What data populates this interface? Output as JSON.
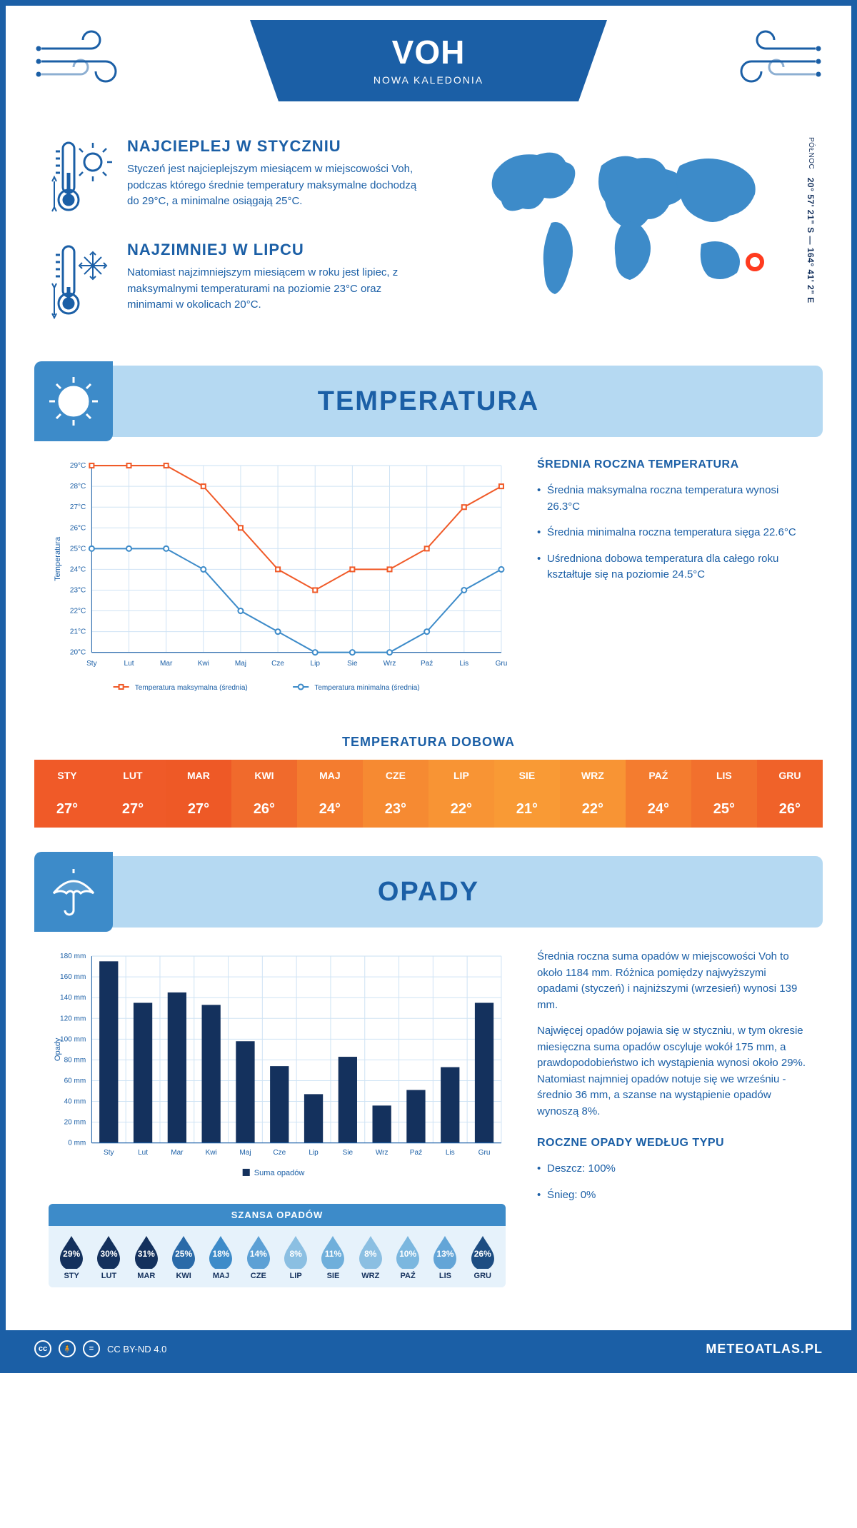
{
  "header": {
    "title": "VOH",
    "subtitle": "NOWA KALEDONIA"
  },
  "coords": {
    "lat": "20° 57' 21\" S",
    "sep": "—",
    "lon": "164° 41' 2\" E",
    "north": "PÓŁNOC"
  },
  "warmest": {
    "title": "NAJCIEPLEJ W STYCZNIU",
    "text": "Styczeń jest najcieplejszym miesiącem w miejscowości Voh, podczas którego średnie temperatury maksymalne dochodzą do 29°C, a minimalne osiągają 25°C."
  },
  "coldest": {
    "title": "NAJZIMNIEJ W LIPCU",
    "text": "Natomiast najzimniejszym miesiącem w roku jest lipiec, z maksymalnymi temperaturami na poziomie 23°C oraz minimami w okolicach 20°C."
  },
  "temperature_section": {
    "title": "TEMPERATURA",
    "side_title": "ŚREDNIA ROCZNA TEMPERATURA",
    "bullets": [
      "Średnia maksymalna roczna temperatura wynosi 26.3°C",
      "Średnia minimalna roczna temperatura sięga 22.6°C",
      "Uśredniona dobowa temperatura dla całego roku kształtuje się na poziomie 24.5°C"
    ]
  },
  "temp_chart": {
    "type": "line",
    "months": [
      "Sty",
      "Lut",
      "Mar",
      "Kwi",
      "Maj",
      "Cze",
      "Lip",
      "Sie",
      "Wrz",
      "Paź",
      "Lis",
      "Gru"
    ],
    "ylabel": "Temperatura",
    "ylim": [
      20,
      29
    ],
    "ytick_step": 1,
    "y_suffix": "°C",
    "grid_color": "#cfe3f4",
    "axis_color": "#1b5fa6",
    "background": "#ffffff",
    "series": [
      {
        "name": "Temperatura maksymalna (średnia)",
        "color": "#f05a28",
        "values": [
          29,
          29,
          29,
          28,
          26,
          24,
          23,
          24,
          24,
          25,
          27,
          28
        ],
        "marker": "square"
      },
      {
        "name": "Temperatura minimalna (średnia)",
        "color": "#3d8bc9",
        "values": [
          25,
          25,
          25,
          24,
          22,
          21,
          20,
          20,
          20,
          21,
          23,
          24
        ],
        "marker": "circle"
      }
    ],
    "label_fontsize": 11,
    "tick_fontsize": 10
  },
  "daily_temp": {
    "title": "TEMPERATURA DOBOWA",
    "months": [
      "STY",
      "LUT",
      "MAR",
      "KWI",
      "MAJ",
      "CZE",
      "LIP",
      "SIE",
      "WRZ",
      "PAŹ",
      "LIS",
      "GRU"
    ],
    "values": [
      "27°",
      "27°",
      "27°",
      "26°",
      "24°",
      "23°",
      "22°",
      "21°",
      "22°",
      "24°",
      "25°",
      "26°"
    ],
    "header_colors": [
      "#f05a28",
      "#ef5a28",
      "#ee5926",
      "#f06a2c",
      "#f47c2f",
      "#f68a32",
      "#f89434",
      "#f99a35",
      "#f89434",
      "#f47c2f",
      "#f2702d",
      "#f06229"
    ],
    "value_colors": [
      "#f05a28",
      "#ef5a28",
      "#ee5926",
      "#f06a2c",
      "#f47c2f",
      "#f68a32",
      "#f89434",
      "#f99a35",
      "#f89434",
      "#f47c2f",
      "#f2702d",
      "#f06229"
    ]
  },
  "precip_section": {
    "title": "OPADY",
    "text1": "Średnia roczna suma opadów w miejscowości Voh to około 1184 mm. Różnica pomiędzy najwyższymi opadami (styczeń) i najniższymi (wrzesień) wynosi 139 mm.",
    "text2": "Najwięcej opadów pojawia się w styczniu, w tym okresie miesięczna suma opadów oscyluje wokół 175 mm, a prawdopodobieństwo ich wystąpienia wynosi około 29%. Natomiast najmniej opadów notuje się we wrześniu - średnio 36 mm, a szanse na wystąpienie opadów wynoszą 8%.",
    "type_title": "ROCZNE OPADY WEDŁUG TYPU",
    "type_bullets": [
      "Deszcz: 100%",
      "Śnieg: 0%"
    ]
  },
  "precip_chart": {
    "type": "bar",
    "months": [
      "Sty",
      "Lut",
      "Mar",
      "Kwi",
      "Maj",
      "Cze",
      "Lip",
      "Sie",
      "Wrz",
      "Paź",
      "Lis",
      "Gru"
    ],
    "ylabel": "Opady",
    "ylim": [
      0,
      180
    ],
    "ytick_step": 20,
    "y_suffix": " mm",
    "values": [
      175,
      135,
      145,
      133,
      98,
      74,
      47,
      83,
      36,
      51,
      73,
      135
    ],
    "bar_color": "#14315d",
    "grid_color": "#cfe3f4",
    "axis_color": "#1b5fa6",
    "bar_width": 0.55,
    "legend": "Suma opadów",
    "label_fontsize": 11,
    "tick_fontsize": 10
  },
  "rain_chance": {
    "title": "SZANSA OPADÓW",
    "months": [
      "STY",
      "LUT",
      "MAR",
      "KWI",
      "MAJ",
      "CZE",
      "LIP",
      "SIE",
      "WRZ",
      "PAŹ",
      "LIS",
      "GRU"
    ],
    "values": [
      "29%",
      "30%",
      "31%",
      "25%",
      "18%",
      "14%",
      "8%",
      "11%",
      "8%",
      "10%",
      "13%",
      "26%"
    ],
    "drop_colors": [
      "#14315d",
      "#14315d",
      "#14315d",
      "#2a6aa8",
      "#3d8bc9",
      "#5ca0d5",
      "#8bbfe2",
      "#6fafdb",
      "#8bbfe2",
      "#7bb7df",
      "#63a5d7",
      "#1d4d82"
    ]
  },
  "footer": {
    "license": "CC BY-ND 4.0",
    "brand": "METEOATLAS.PL"
  },
  "colors": {
    "primary": "#1b5fa6",
    "light_blue": "#b5d9f2",
    "mid_blue": "#3d8bc9",
    "dark_navy": "#14315d",
    "orange": "#f05a28"
  }
}
